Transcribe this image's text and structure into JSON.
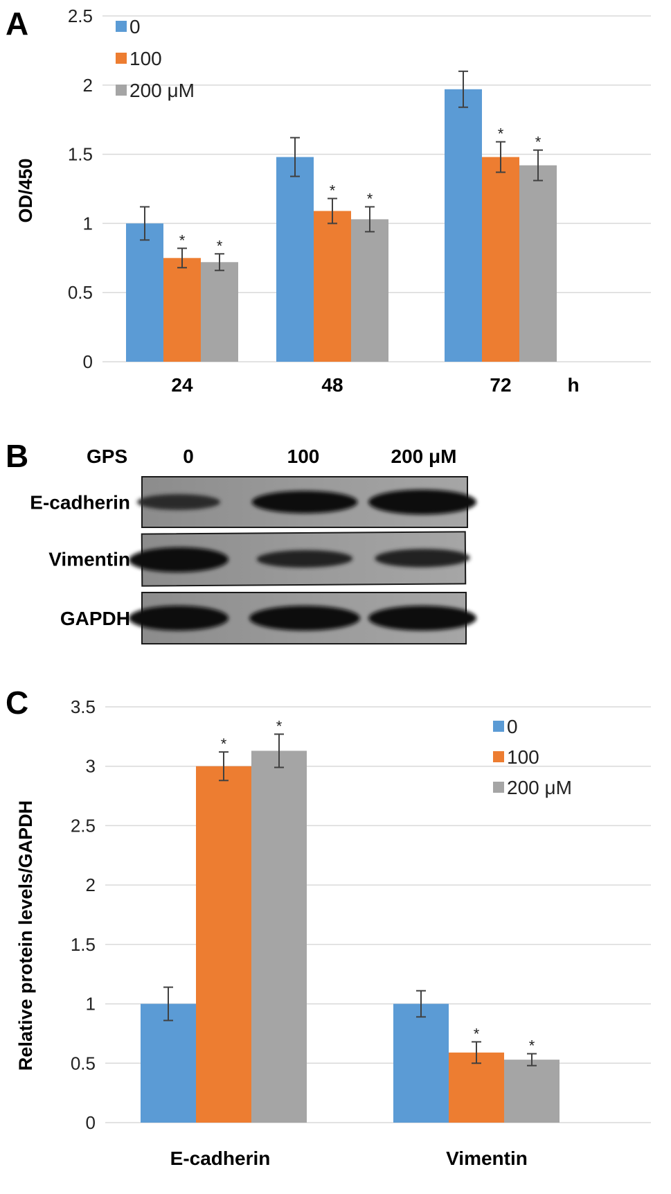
{
  "colors": {
    "series0": "#5b9bd5",
    "series1": "#ed7d31",
    "series2": "#a5a5a5",
    "grid": "#d9d9d9",
    "errorbar": "#404040"
  },
  "panel_letters": {
    "a": "A",
    "b": "B",
    "c": "C"
  },
  "chart_data": [
    {
      "type": "bar",
      "panel": "A",
      "title": "",
      "xlabel": "",
      "unit_label": "h",
      "ylabel": "OD/450",
      "ylim": [
        0,
        2.5
      ],
      "yticks": [
        "0",
        "0.5",
        "1",
        "1.5",
        "2",
        "2.5"
      ],
      "grid": true,
      "legend_position": "top-left",
      "categories": [
        "24",
        "48",
        "72"
      ],
      "series": [
        {
          "name": "0",
          "values": [
            1.0,
            1.48,
            1.97
          ],
          "errors": [
            0.12,
            0.14,
            0.13
          ],
          "stars": [
            "",
            "",
            ""
          ]
        },
        {
          "name": "100",
          "values": [
            0.75,
            1.09,
            1.48
          ],
          "errors": [
            0.07,
            0.09,
            0.11
          ],
          "stars": [
            "*",
            "*",
            "*"
          ]
        },
        {
          "name": "200 μM",
          "values": [
            0.72,
            1.03,
            1.42
          ],
          "errors": [
            0.06,
            0.09,
            0.11
          ],
          "stars": [
            "*",
            "*",
            "*"
          ]
        }
      ]
    },
    {
      "type": "bar",
      "panel": "C",
      "title": "",
      "xlabel": "",
      "ylabel": "Relative protein levels/GAPDH",
      "ylim": [
        0,
        3.5
      ],
      "yticks": [
        "0",
        "0.5",
        "1",
        "1.5",
        "2",
        "2.5",
        "3",
        "3.5"
      ],
      "grid": true,
      "legend_position": "top-right",
      "categories": [
        "E-cadherin",
        "Vimentin"
      ],
      "series": [
        {
          "name": "0",
          "values": [
            1.0,
            1.0
          ],
          "errors": [
            0.14,
            0.11
          ],
          "stars": [
            "",
            ""
          ]
        },
        {
          "name": "100",
          "values": [
            3.0,
            0.59
          ],
          "errors": [
            0.12,
            0.09
          ],
          "stars": [
            "*",
            "*"
          ]
        },
        {
          "name": "200 μM",
          "values": [
            3.13,
            0.53
          ],
          "errors": [
            0.14,
            0.05
          ],
          "stars": [
            "*",
            "*"
          ]
        }
      ]
    }
  ],
  "western_blot": {
    "treatment_label": "GPS",
    "lanes": [
      "0",
      "100",
      "200 μM"
    ],
    "rows": [
      {
        "label": "E-cadherin",
        "intensity": [
          0.45,
          0.85,
          1.0
        ]
      },
      {
        "label": "Vimentin",
        "intensity": [
          1.0,
          0.55,
          0.6
        ]
      },
      {
        "label": "GAPDH",
        "intensity": [
          1.0,
          1.0,
          1.0
        ]
      }
    ]
  }
}
